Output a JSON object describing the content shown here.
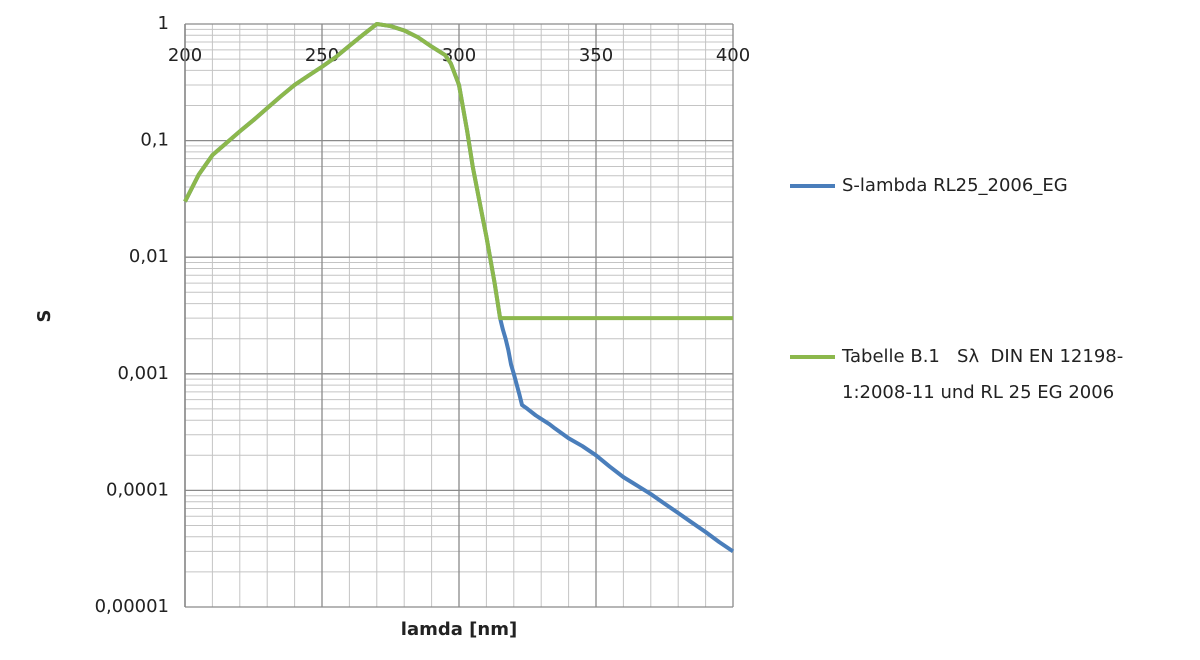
{
  "chart_data": {
    "type": "line",
    "xlabel": "lamda [nm]",
    "ylabel": "S",
    "x": [
      200,
      205,
      210,
      215,
      220,
      225,
      230,
      235,
      240,
      245,
      250,
      255,
      260,
      265,
      270,
      275,
      280,
      285,
      290,
      295,
      297,
      300,
      303,
      305,
      308,
      310,
      313,
      315,
      316,
      317,
      318,
      319,
      320,
      322,
      323,
      325,
      328,
      330,
      333,
      335,
      340,
      345,
      350,
      355,
      360,
      365,
      370,
      375,
      380,
      385,
      390,
      395,
      400
    ],
    "series": [
      {
        "name": "S-lambda RL25_2006_EG",
        "color": "#4a7ebb",
        "values": [
          0.03,
          0.051,
          0.075,
          0.095,
          0.12,
          0.15,
          0.19,
          0.24,
          0.3,
          0.36,
          0.43,
          0.52,
          0.65,
          0.81,
          1.0,
          0.96,
          0.88,
          0.77,
          0.64,
          0.54,
          0.46,
          0.3,
          0.12,
          0.06,
          0.026,
          0.015,
          0.006,
          0.003,
          0.0024,
          0.002,
          0.0016,
          0.0012,
          0.001,
          0.00067,
          0.00054,
          0.0005,
          0.00044,
          0.00041,
          0.00037,
          0.00034,
          0.00028,
          0.00024,
          0.0002,
          0.00016,
          0.00013,
          0.00011,
          9.3e-05,
          7.7e-05,
          6.4e-05,
          5.3e-05,
          4.4e-05,
          3.6e-05,
          3e-05
        ]
      },
      {
        "name": "Tabelle B.1   Sλ  DIN EN 12198-1:2008-11 und RL 25 EG 2006",
        "color": "#8cb84c",
        "values": [
          0.03,
          0.051,
          0.075,
          0.095,
          0.12,
          0.15,
          0.19,
          0.24,
          0.3,
          0.36,
          0.43,
          0.52,
          0.65,
          0.81,
          1.0,
          0.96,
          0.88,
          0.77,
          0.64,
          0.54,
          0.46,
          0.3,
          0.12,
          0.06,
          0.026,
          0.015,
          0.006,
          0.003,
          0.003,
          0.003,
          0.003,
          0.003,
          0.003,
          0.003,
          0.003,
          0.003,
          0.003,
          0.003,
          0.003,
          0.003,
          0.003,
          0.003,
          0.003,
          0.003,
          0.003,
          0.003,
          0.003,
          0.003,
          0.003,
          0.003,
          0.003,
          0.003,
          0.003
        ]
      }
    ],
    "xlim": [
      200,
      400
    ],
    "xticks": [
      200,
      250,
      300,
      350,
      400
    ],
    "ylim": [
      1e-05,
      1
    ],
    "ylog": true,
    "yticks": [
      {
        "value": 1e-05,
        "label": "0,00001"
      },
      {
        "value": 0.0001,
        "label": "0,0001"
      },
      {
        "value": 0.001,
        "label": "0,001"
      },
      {
        "value": 0.01,
        "label": "0,01"
      },
      {
        "value": 0.1,
        "label": "0,1"
      },
      1
    ],
    "grid": true,
    "minor_grid": true,
    "legend": "right"
  }
}
